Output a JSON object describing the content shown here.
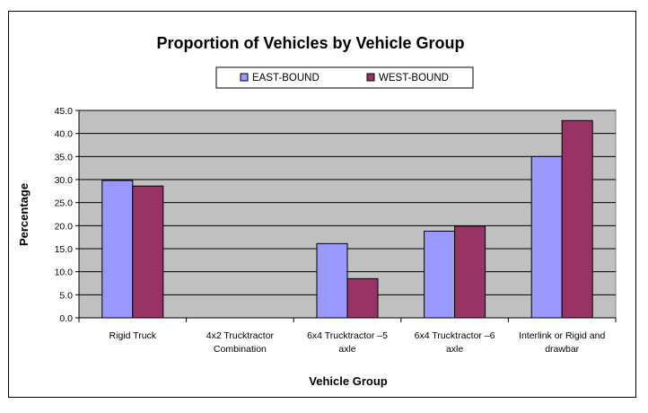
{
  "chart_data": {
    "type": "bar",
    "title": "Proportion of Vehicles by Vehicle Group",
    "xlabel": "Vehicle Group",
    "ylabel": "Percentage",
    "ylim": [
      0,
      45
    ],
    "yticks": [
      "0.0",
      "5.0",
      "10.0",
      "15.0",
      "20.0",
      "25.0",
      "30.0",
      "35.0",
      "40.0",
      "45.0"
    ],
    "categories": [
      [
        "Rigid Truck"
      ],
      [
        "4x2 Trucktractor",
        "Combination"
      ],
      [
        "6x4 Trucktractor –5",
        "axle"
      ],
      [
        "6x4 Trucktractor –6",
        "axle"
      ],
      [
        "Interlink or Rigid and",
        "drawbar"
      ]
    ],
    "series": [
      {
        "name": "EAST-BOUND",
        "color": "#9999ff",
        "values": [
          29.8,
          0,
          16.1,
          18.8,
          35.0
        ]
      },
      {
        "name": "WEST-BOUND",
        "color": "#993366",
        "values": [
          28.6,
          0,
          8.5,
          19.9,
          42.8
        ]
      }
    ],
    "plot_background": "#c0c0c0",
    "grid": true,
    "legend_position": "top"
  }
}
